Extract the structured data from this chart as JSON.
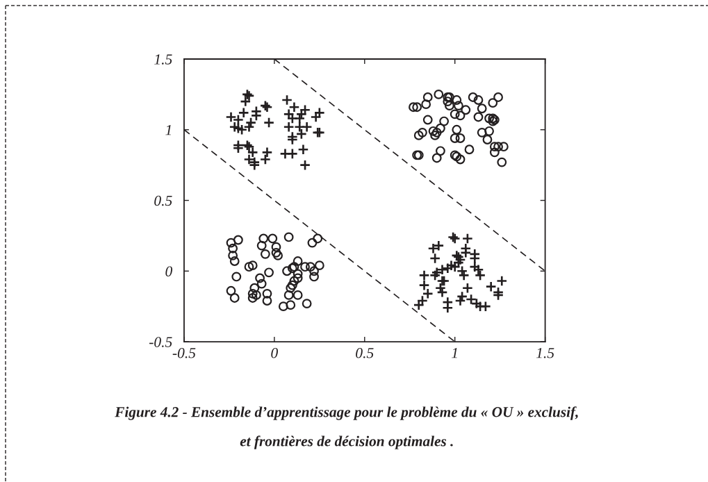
{
  "chart_data": {
    "type": "scatter",
    "xlim": [
      -0.5,
      1.5
    ],
    "ylim": [
      -0.5,
      1.5
    ],
    "xticks": [
      -0.5,
      0,
      0.5,
      1,
      1.5
    ],
    "yticks": [
      -0.5,
      0,
      0.5,
      1,
      1.5
    ],
    "annotations": [
      "Figure 4.2 - Ensemble d’apprentissage pour le problème du « OU » exclusif,",
      "et frontières de décision optimales ."
    ],
    "series": [
      {
        "marker": "cross",
        "color": "#231f20",
        "x": [
          -0.15,
          -0.14,
          -0.16,
          -0.05,
          -0.04,
          0.07,
          0.11,
          0.17,
          0.25,
          -0.24,
          -0.17,
          -0.1,
          -0.1,
          -0.2,
          0.23,
          0.08,
          0.1,
          0.15,
          0.14,
          -0.13,
          -0.03,
          -0.22,
          -0.2,
          -0.18,
          -0.14,
          0.08,
          0.14,
          0.18,
          0.24,
          0.25,
          0.15,
          0.1,
          0.1,
          -0.2,
          -0.2,
          -0.15,
          -0.14,
          -0.12,
          -0.04,
          -0.05,
          0.06,
          0.1,
          0.16,
          -0.14,
          -0.11,
          -0.11,
          0.17,
          0.99,
          1.0,
          1.07,
          0.91,
          0.88,
          1.06,
          1.06,
          0.89,
          1.01,
          1.02,
          1.03,
          1.02,
          1.11,
          1.11,
          0.98,
          1.0,
          0.96,
          1.11,
          1.13,
          1.14,
          0.9,
          0.93,
          0.89,
          1.04,
          1.05,
          0.83,
          0.93,
          0.94,
          0.92,
          0.93,
          0.83,
          1.07,
          1.2,
          1.26,
          0.85,
          0.82,
          0.8,
          1.24,
          1.24,
          1.04,
          1.03,
          0.96,
          0.96,
          1.09,
          1.12,
          1.14,
          1.17
        ],
        "values": [
          1.25,
          1.24,
          1.2,
          1.17,
          1.16,
          1.21,
          1.16,
          1.14,
          1.12,
          1.09,
          1.12,
          1.13,
          1.1,
          1.07,
          1.09,
          1.11,
          1.08,
          1.11,
          1.08,
          1.05,
          1.05,
          1.02,
          1.01,
          1.0,
          1.02,
          1.02,
          1.02,
          1.02,
          0.98,
          0.98,
          0.97,
          0.95,
          0.93,
          0.89,
          0.87,
          0.89,
          0.88,
          0.84,
          0.84,
          0.79,
          0.83,
          0.83,
          0.86,
          0.79,
          0.77,
          0.75,
          0.75,
          0.24,
          0.23,
          0.23,
          0.18,
          0.16,
          0.16,
          0.13,
          0.09,
          0.11,
          0.1,
          0.08,
          0.06,
          0.12,
          0.09,
          0.04,
          0.03,
          0.02,
          0.03,
          0.01,
          -0.03,
          -0.01,
          0.01,
          -0.03,
          0.0,
          -0.03,
          -0.03,
          -0.07,
          -0.07,
          -0.12,
          -0.15,
          -0.1,
          -0.12,
          -0.11,
          -0.07,
          -0.16,
          -0.21,
          -0.24,
          -0.15,
          -0.17,
          -0.18,
          -0.21,
          -0.22,
          -0.26,
          -0.2,
          -0.23,
          -0.25,
          -0.25
        ]
      },
      {
        "marker": "circle",
        "color": "#231f20",
        "x": [
          0.77,
          0.79,
          0.84,
          0.85,
          0.91,
          0.96,
          0.97,
          0.96,
          0.97,
          1.01,
          1.02,
          1.06,
          1.0,
          1.03,
          1.1,
          1.13,
          1.15,
          1.21,
          1.24,
          1.13,
          1.19,
          1.21,
          1.22,
          1.21,
          0.85,
          0.94,
          0.92,
          0.88,
          0.9,
          0.89,
          0.8,
          0.82,
          1.01,
          1.0,
          1.03,
          1.15,
          1.19,
          1.18,
          1.22,
          1.24,
          1.27,
          1.22,
          0.79,
          0.8,
          0.92,
          0.9,
          1.0,
          1.01,
          1.03,
          1.08,
          1.26,
          -0.24,
          -0.2,
          -0.23,
          -0.23,
          -0.22,
          -0.06,
          -0.01,
          -0.07,
          0.01,
          0.01,
          0.02,
          -0.05,
          0.08,
          0.21,
          0.24,
          -0.14,
          -0.12,
          -0.21,
          -0.03,
          -0.08,
          -0.07,
          -0.11,
          -0.12,
          -0.12,
          -0.1,
          -0.24,
          -0.22,
          -0.04,
          -0.04,
          0.13,
          0.07,
          0.1,
          0.11,
          0.17,
          0.2,
          0.25,
          0.22,
          0.22,
          0.13,
          0.13,
          0.11,
          0.1,
          0.09,
          0.08,
          0.13,
          0.05,
          0.09,
          0.18
        ],
        "values": [
          1.16,
          1.16,
          1.18,
          1.23,
          1.25,
          1.23,
          1.23,
          1.2,
          1.17,
          1.21,
          1.17,
          1.14,
          1.11,
          1.1,
          1.23,
          1.21,
          1.15,
          1.19,
          1.23,
          1.09,
          1.08,
          1.08,
          1.07,
          1.06,
          1.07,
          1.06,
          1.01,
          0.99,
          0.98,
          0.96,
          0.96,
          0.98,
          1.0,
          0.94,
          0.94,
          0.98,
          0.99,
          0.93,
          0.88,
          0.88,
          0.88,
          0.84,
          0.82,
          0.82,
          0.85,
          0.8,
          0.82,
          0.81,
          0.79,
          0.86,
          0.77,
          0.2,
          0.22,
          0.16,
          0.11,
          0.07,
          0.23,
          0.23,
          0.18,
          0.17,
          0.13,
          0.11,
          0.12,
          0.24,
          0.2,
          0.23,
          0.03,
          0.04,
          -0.04,
          -0.01,
          -0.05,
          -0.09,
          -0.12,
          -0.16,
          -0.19,
          -0.17,
          -0.14,
          -0.19,
          -0.16,
          -0.21,
          0.07,
          0.0,
          0.02,
          0.03,
          0.03,
          0.03,
          0.04,
          0.0,
          -0.04,
          -0.02,
          -0.05,
          -0.07,
          -0.1,
          -0.12,
          -0.17,
          -0.17,
          -0.25,
          -0.24,
          -0.23
        ]
      },
      {
        "type": "line",
        "line_style": "dashed",
        "color": "#231f20",
        "x": [
          -0.5,
          1
        ],
        "values": [
          1,
          -0.5
        ]
      },
      {
        "type": "line",
        "line_style": "dashed",
        "color": "#231f20",
        "x": [
          0,
          1.5
        ],
        "values": [
          1.5,
          0
        ]
      }
    ]
  }
}
